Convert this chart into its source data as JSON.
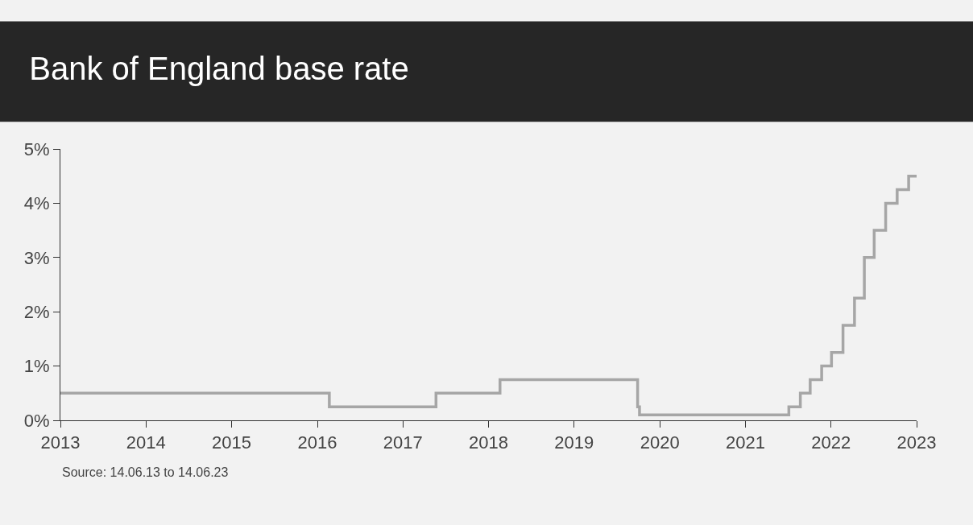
{
  "chart_data": {
    "type": "step",
    "title": "Bank of England base rate",
    "x": [
      "2013-06-14",
      "2016-08-04",
      "2017-11-02",
      "2018-08-02",
      "2020-03-11",
      "2020-03-19",
      "2021-12-16",
      "2022-02-03",
      "2022-03-17",
      "2022-05-05",
      "2022-06-16",
      "2022-08-04",
      "2022-09-22",
      "2022-11-03",
      "2022-12-15",
      "2023-02-02",
      "2023-03-23",
      "2023-05-11",
      "2023-06-14"
    ],
    "series": [
      {
        "color": "#a6a6a6",
        "values": [
          0.5,
          0.25,
          0.5,
          0.75,
          0.25,
          0.1,
          0.25,
          0.5,
          0.75,
          1.0,
          1.25,
          1.75,
          2.25,
          3.0,
          3.5,
          4.0,
          4.25,
          4.5,
          4.5
        ]
      }
    ],
    "xlim": [
      "2013-06-14",
      "2023-06-14"
    ],
    "xticks": [
      {
        "value": "2013-06-14",
        "label": "2013"
      },
      {
        "value": "2014-06-14",
        "label": "2014"
      },
      {
        "value": "2015-06-14",
        "label": "2015"
      },
      {
        "value": "2016-06-14",
        "label": "2016"
      },
      {
        "value": "2017-06-14",
        "label": "2017"
      },
      {
        "value": "2018-06-14",
        "label": "2018"
      },
      {
        "value": "2019-06-14",
        "label": "2019"
      },
      {
        "value": "2020-06-14",
        "label": "2020"
      },
      {
        "value": "2021-06-14",
        "label": "2021"
      },
      {
        "value": "2022-06-14",
        "label": "2022"
      },
      {
        "value": "2023-06-14",
        "label": "2023"
      }
    ],
    "ylim": [
      0,
      5
    ],
    "yticks": [
      {
        "value": 0,
        "label": "0%"
      },
      {
        "value": 1,
        "label": "1%"
      },
      {
        "value": 2,
        "label": "2%"
      },
      {
        "value": 3,
        "label": "3%"
      },
      {
        "value": 4,
        "label": "4%"
      },
      {
        "value": 5,
        "label": "5%"
      }
    ],
    "grid": false,
    "annotations": [
      "Source: 14.06.13 to 14.06.23"
    ]
  }
}
